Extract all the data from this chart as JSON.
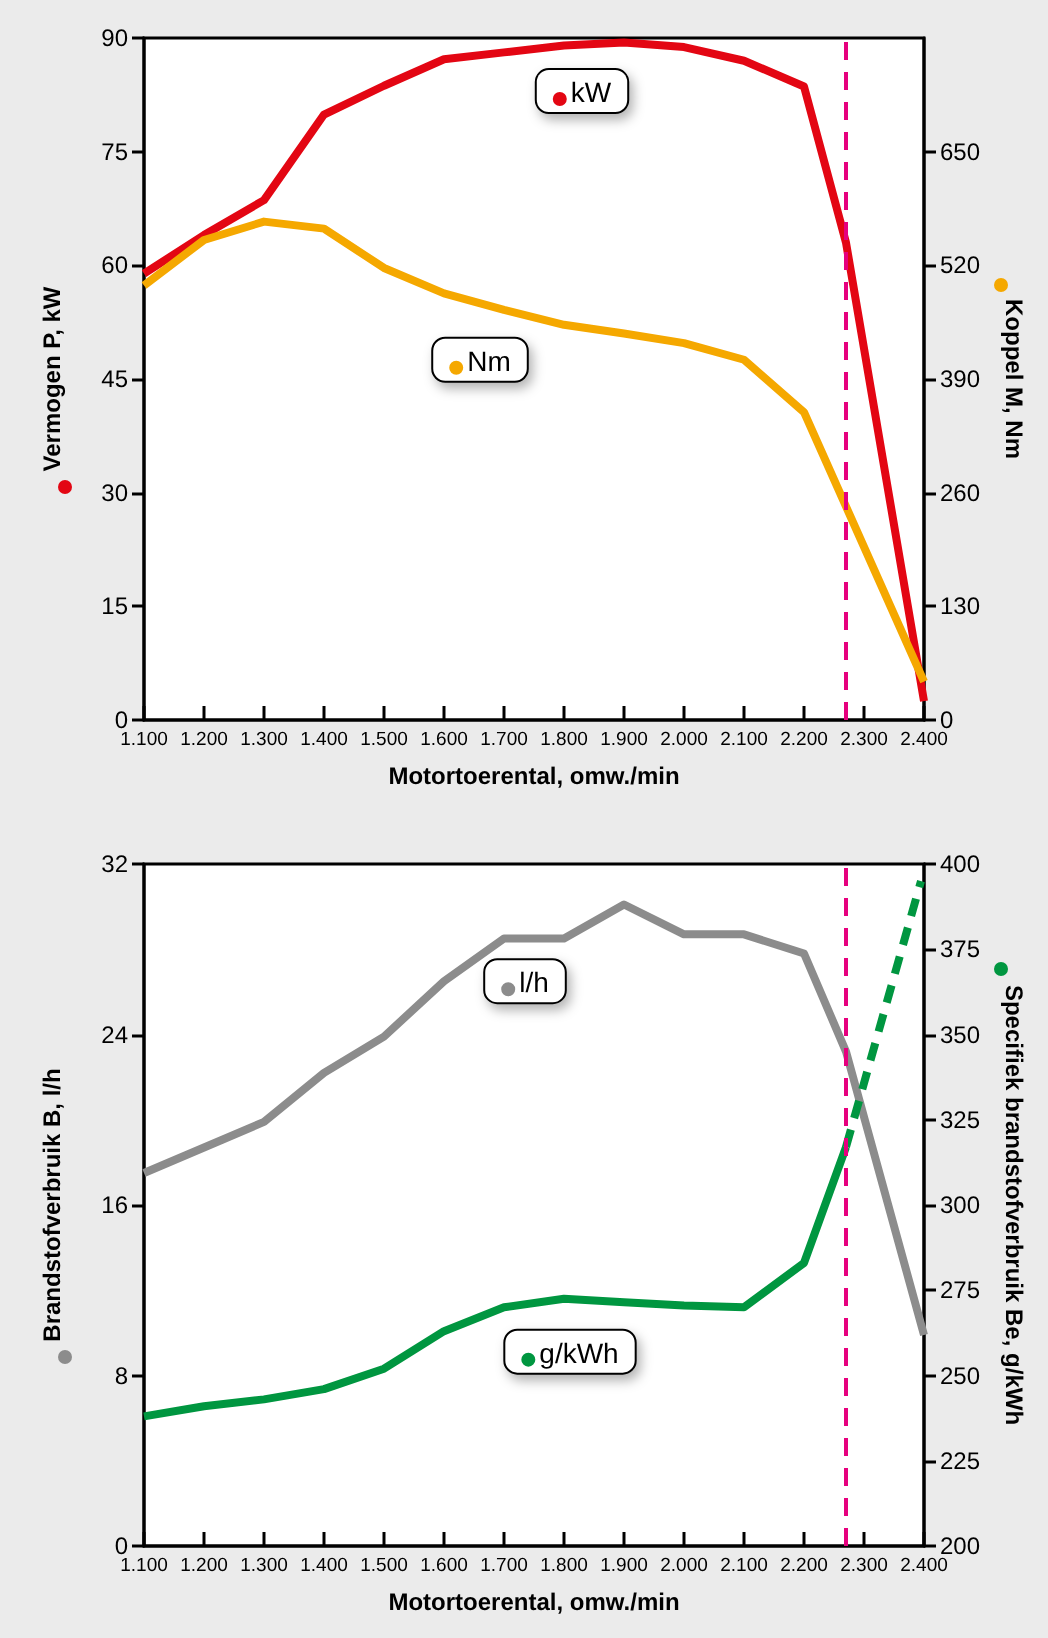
{
  "chart_data": [
    {
      "type": "line",
      "xlabel": "Motortoerental, omw./min",
      "ylabel": "Vermogen P, kW",
      "y2label": "Koppel M, Nm",
      "xlim": [
        1100,
        2400
      ],
      "xticks": [
        {
          "value": 1100,
          "label": "1.100"
        },
        {
          "value": 1200,
          "label": "1.200"
        },
        {
          "value": 1300,
          "label": "1.300"
        },
        {
          "value": 1400,
          "label": "1.400"
        },
        {
          "value": 1500,
          "label": "1.500"
        },
        {
          "value": 1600,
          "label": "1.600"
        },
        {
          "value": 1700,
          "label": "1.700"
        },
        {
          "value": 1800,
          "label": "1.800"
        },
        {
          "value": 1900,
          "label": "1.900"
        },
        {
          "value": 2000,
          "label": "2.000"
        },
        {
          "value": 2100,
          "label": "2.100"
        },
        {
          "value": 2200,
          "label": "2.200"
        },
        {
          "value": 2300,
          "label": "2.300"
        },
        {
          "value": 2400,
          "label": "2.400"
        }
      ],
      "ylim": [
        0,
        90
      ],
      "yticks": [
        0,
        15,
        30,
        45,
        60,
        75,
        90
      ],
      "y2lim": [
        0,
        780
      ],
      "y2ticks": [
        0,
        130,
        260,
        390,
        520,
        650
      ],
      "grid": false,
      "legend": "top",
      "marker": "none",
      "series": [
        {
          "name": "kW",
          "color": "#e30613",
          "axis": "y",
          "x": [
            1100,
            1200,
            1300,
            1400,
            1500,
            1600,
            1700,
            1800,
            1900,
            2000,
            2100,
            2200,
            2270,
            2400
          ],
          "values": [
            58.9,
            64,
            68.6,
            79.9,
            83.7,
            87.2,
            88.1,
            89,
            89.4,
            88.8,
            87,
            83.6,
            63,
            2.5
          ]
        },
        {
          "name": "Nm",
          "color": "#f5a800",
          "axis": "y2",
          "x": [
            1100,
            1200,
            1300,
            1400,
            1500,
            1600,
            1700,
            1800,
            1900,
            2000,
            2100,
            2200,
            2400
          ],
          "values": [
            497,
            549,
            570,
            562,
            517,
            488,
            469,
            452,
            442,
            431,
            412,
            352,
            44
          ]
        }
      ],
      "ref_lines": [
        {
          "axis": "x",
          "value": 2270,
          "color": "#e6007e",
          "line_style": "dashed"
        }
      ]
    },
    {
      "type": "line",
      "xlabel": "Motortoerental, omw./min",
      "ylabel": "Brandstofverbruik B, l/h",
      "y2label": "Specifiek brandstofverbruik Be, g/kWh",
      "xlim": [
        1100,
        2400
      ],
      "xticks": [
        {
          "value": 1100,
          "label": "1.100"
        },
        {
          "value": 1200,
          "label": "1.200"
        },
        {
          "value": 1300,
          "label": "1.300"
        },
        {
          "value": 1400,
          "label": "1.400"
        },
        {
          "value": 1500,
          "label": "1.500"
        },
        {
          "value": 1600,
          "label": "1.600"
        },
        {
          "value": 1700,
          "label": "1.700"
        },
        {
          "value": 1800,
          "label": "1.800"
        },
        {
          "value": 1900,
          "label": "1.900"
        },
        {
          "value": 2000,
          "label": "2.000"
        },
        {
          "value": 2100,
          "label": "2.100"
        },
        {
          "value": 2200,
          "label": "2.200"
        },
        {
          "value": 2300,
          "label": "2.300"
        },
        {
          "value": 2400,
          "label": "2.400"
        }
      ],
      "ylim": [
        0,
        32
      ],
      "yticks": [
        0,
        8,
        16,
        24,
        32
      ],
      "y2lim": [
        200,
        400
      ],
      "y2ticks": [
        200,
        225,
        250,
        275,
        300,
        325,
        350,
        375,
        400
      ],
      "grid": false,
      "legend": "top",
      "marker": "none",
      "series": [
        {
          "name": "l/h",
          "color": "#8c8c8c",
          "axis": "y",
          "x": [
            1100,
            1200,
            1300,
            1400,
            1500,
            1600,
            1700,
            1800,
            1900,
            2000,
            2100,
            2200,
            2270,
            2400
          ],
          "values": [
            17.5,
            18.7,
            19.9,
            22.2,
            23.9,
            26.5,
            28.5,
            28.5,
            30.1,
            28.7,
            28.7,
            27.8,
            23.2,
            9.9
          ]
        },
        {
          "name": "g/kWh",
          "color": "#009640",
          "axis": "y2",
          "x": [
            1100,
            1200,
            1300,
            1400,
            1500,
            1600,
            1700,
            1800,
            1900,
            2000,
            2100,
            2200,
            2270
          ],
          "values": [
            238,
            241,
            243,
            246,
            252,
            263,
            270,
            272.5,
            271.5,
            270.5,
            270,
            283,
            317
          ]
        },
        {
          "color": "#009640",
          "axis": "y2",
          "line_style": "dashed",
          "x": [
            2270,
            2395
          ],
          "values": [
            317,
            395
          ]
        }
      ],
      "ref_lines": [
        {
          "axis": "x",
          "value": 2270,
          "color": "#e6007e",
          "line_style": "dashed"
        }
      ]
    }
  ]
}
